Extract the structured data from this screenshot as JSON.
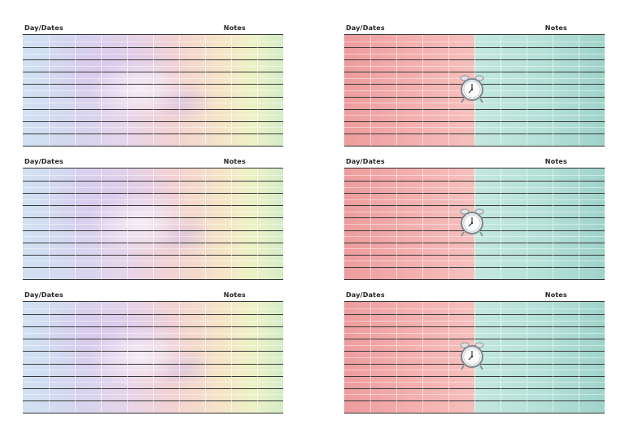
{
  "labels": {
    "day_dates": "Day/Dates",
    "notes": "Notes"
  },
  "cards": [
    {
      "column": "left",
      "row": 1,
      "style": "pastel-swirl"
    },
    {
      "column": "left",
      "row": 2,
      "style": "pastel-swirl"
    },
    {
      "column": "left",
      "row": 3,
      "style": "pastel-swirl"
    },
    {
      "column": "right",
      "row": 1,
      "style": "red-teal",
      "icon": "alarm-clock-icon"
    },
    {
      "column": "right",
      "row": 2,
      "style": "red-teal",
      "icon": "alarm-clock-icon"
    },
    {
      "column": "right",
      "row": 3,
      "style": "red-teal",
      "icon": "alarm-clock-icon"
    }
  ],
  "colors": {
    "pastel_blue": "#cfe3f2",
    "pastel_yellow": "#eef2c6",
    "clock_red": "#ee9c9c",
    "clock_teal": "#9fd3c9",
    "rule_line": "#3a3a3a"
  }
}
